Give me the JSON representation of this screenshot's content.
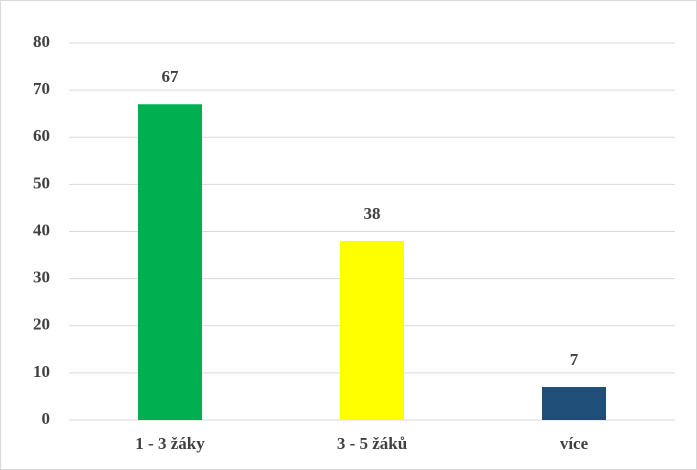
{
  "chart_data": {
    "type": "bar",
    "categories": [
      "1 - 3 žáky",
      "3 - 5 žáků",
      "více"
    ],
    "values": [
      67,
      38,
      7
    ],
    "colors": [
      "#00b050",
      "#ffff00",
      "#1f4e79"
    ],
    "ylim": [
      0,
      80
    ],
    "yticks": [
      0,
      10,
      20,
      30,
      40,
      50,
      60,
      70,
      80
    ],
    "grid": true,
    "data_labels": true
  }
}
